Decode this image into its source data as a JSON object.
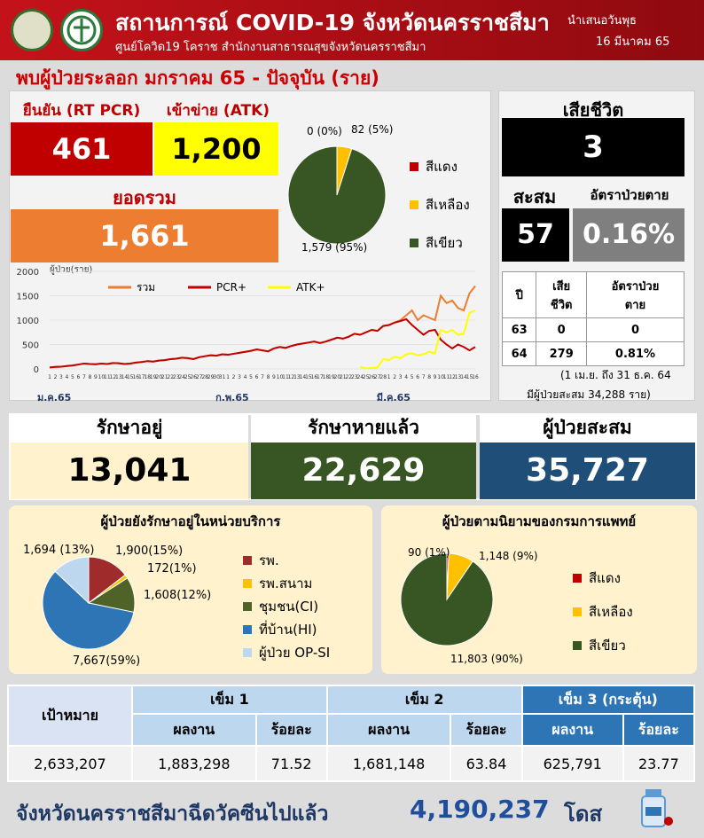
{
  "header": {
    "title": "สถานการณ์ COVID-19 จังหวัดนครราชสีมา",
    "subtitle": "ศูนย์โควิด19 โคราช สำนักงานสาธารณสุขจังหวัดนครราชสีมา",
    "presented_label": "นำเสนอวันพุธ",
    "date": "16 มีนาคม 65"
  },
  "section_title": "พบผู้ป่วยระลอก มกราคม 65 - ปัจจุบัน (ราย)",
  "confirmed": {
    "rtpcr_label": "ยืนยัน (RT PCR)",
    "rtpcr_value": "461",
    "atk_label": "เข้าข่าย (ATK)",
    "atk_value": "1,200",
    "total_label": "ยอดรวม",
    "total_value": "1,661"
  },
  "severity_pie": {
    "labels": {
      "red": "0 (0%)",
      "yellow": "82 (5%)",
      "green": "1,579 (95%)"
    },
    "values": [
      0,
      82,
      1579
    ],
    "colors": [
      "#c00000",
      "#ffc000",
      "#375623"
    ],
    "legend": [
      "สีแดง",
      "สีเหลือง",
      "สีเขียว"
    ]
  },
  "deaths": {
    "title": "เสียชีวิต",
    "value": "3",
    "cum_label": "สะสม",
    "rate_label": "อัตราป่วยตาย",
    "cum_value": "57",
    "rate_value": "0.16%"
  },
  "death_table": {
    "headers": [
      "ปี",
      "เสีย\nชีวิต",
      "อัตราป่วย\nตาย"
    ],
    "rows": [
      [
        "63",
        "0",
        "0"
      ],
      [
        "64",
        "279",
        "0.81%"
      ]
    ],
    "note": "(1 เม.ย. ถึง 31 ธ.ค. 64",
    "note2": "มีผู้ป่วยสะสม  34,288 ราย)"
  },
  "chart_data": {
    "type": "line",
    "ylabel": "ผู้ป่วย(ราย)",
    "ylim": [
      0,
      2000
    ],
    "yticks": [
      "0",
      "500",
      "1000",
      "1500",
      "2000"
    ],
    "x": [
      "1",
      "2",
      "3",
      "4",
      "5",
      "6",
      "7",
      "8",
      "9",
      "10",
      "11",
      "12",
      "13",
      "14",
      "15",
      "16",
      "17",
      "18",
      "19",
      "20",
      "21",
      "22",
      "23",
      "24",
      "25",
      "26",
      "27",
      "28",
      "29",
      "30",
      "31",
      "1",
      "2",
      "3",
      "4",
      "5",
      "6",
      "7",
      "8",
      "9",
      "10",
      "11",
      "12",
      "13",
      "14",
      "15",
      "16",
      "17",
      "18",
      "19",
      "20",
      "21",
      "22",
      "23",
      "24",
      "25",
      "26",
      "27",
      "28",
      "1",
      "2",
      "3",
      "4",
      "5",
      "6",
      "7",
      "8",
      "9",
      "10",
      "11",
      "12",
      "13",
      "14",
      "15",
      "16"
    ],
    "month_labels": [
      "ม.ค.65",
      "ก.พ.65",
      "มี.ค.65"
    ],
    "series": [
      {
        "name": "รวม",
        "color": "#ed7d31",
        "values": [
          30,
          40,
          45,
          60,
          70,
          90,
          110,
          100,
          95,
          110,
          100,
          120,
          115,
          100,
          110,
          130,
          140,
          160,
          150,
          170,
          180,
          200,
          210,
          230,
          220,
          200,
          240,
          260,
          280,
          270,
          300,
          290,
          310,
          330,
          350,
          370,
          400,
          380,
          360,
          420,
          450,
          430,
          470,
          500,
          520,
          540,
          560,
          530,
          560,
          600,
          640,
          620,
          660,
          720,
          700,
          750,
          800,
          780,
          880,
          900,
          950,
          1000,
          1100,
          1200,
          1000,
          1100,
          1050,
          1000,
          1500,
          1350,
          1400,
          1250,
          1200,
          1550,
          1700
        ]
      },
      {
        "name": "PCR+",
        "color": "#c00000",
        "values": [
          30,
          40,
          45,
          60,
          70,
          90,
          110,
          100,
          95,
          110,
          100,
          120,
          115,
          100,
          110,
          130,
          140,
          160,
          150,
          170,
          180,
          200,
          210,
          230,
          220,
          200,
          240,
          260,
          280,
          270,
          300,
          290,
          310,
          330,
          350,
          370,
          400,
          380,
          360,
          420,
          450,
          430,
          470,
          500,
          520,
          540,
          560,
          530,
          560,
          600,
          640,
          620,
          660,
          720,
          700,
          750,
          800,
          780,
          880,
          900,
          950,
          980,
          1020,
          900,
          800,
          700,
          780,
          800,
          600,
          500,
          420,
          500,
          450,
          380,
          450
        ]
      },
      {
        "name": "ATK+",
        "color": "#ffff00",
        "values": [
          null,
          null,
          null,
          null,
          null,
          null,
          null,
          null,
          null,
          null,
          null,
          null,
          null,
          null,
          null,
          null,
          null,
          null,
          null,
          null,
          null,
          null,
          null,
          null,
          null,
          null,
          null,
          null,
          null,
          null,
          null,
          null,
          null,
          null,
          null,
          null,
          null,
          null,
          null,
          null,
          null,
          null,
          null,
          null,
          null,
          null,
          null,
          null,
          null,
          null,
          null,
          null,
          null,
          null,
          40,
          10,
          20,
          30,
          200,
          180,
          250,
          220,
          300,
          320,
          280,
          300,
          350,
          320,
          800,
          750,
          800,
          700,
          720,
          1150,
          1200
        ]
      }
    ]
  },
  "summary": {
    "treating_label": "รักษาอยู่",
    "treating_value": "13,041",
    "recovered_label": "รักษาหายแล้ว",
    "recovered_value": "22,629",
    "cum_label": "ผู้ป่วยสะสม",
    "cum_value": "35,727"
  },
  "facility_pie": {
    "title": "ผู้ป่วยยังรักษาอยู่ในหน่วยบริการ",
    "values": [
      1900,
      172,
      1608,
      7667,
      1694
    ],
    "labels": [
      "1,900(15%)",
      "172(1%)",
      "1,608(12%)",
      "7,667(59%)",
      "1,694 (13%)"
    ],
    "colors": [
      "#a02b2b",
      "#ffc000",
      "#4f6228",
      "#2e75b6",
      "#bdd7ee"
    ],
    "legend": [
      "รพ.",
      "รพ.สนาม",
      "ชุมชน(CI)",
      "ที่บ้าน(HI)",
      "ผู้ป่วย OP-SI"
    ]
  },
  "dms_pie": {
    "title": "ผู้ป่วยตามนิยามของกรมการแพทย์",
    "values": [
      90,
      1148,
      11803
    ],
    "labels": [
      "90 (1%)",
      "1,148 (9%)",
      "11,803 (90%)"
    ],
    "colors": [
      "#c00000",
      "#ffc000",
      "#375623"
    ],
    "legend": [
      "สีแดง",
      "สีเหลือง",
      "สีเขียว"
    ]
  },
  "vaccine": {
    "target_label": "เป้าหมาย",
    "dose1": "เข็ม 1",
    "dose2": "เข็ม 2",
    "dose3": "เข็ม 3 (กระตุ้น)",
    "result": "ผลงาน",
    "percent": "ร้อยละ",
    "target_value": "2,633,207",
    "d1_val": "1,883,298",
    "d1_pct": "71.52",
    "d2_val": "1,681,148",
    "d2_pct": "63.84",
    "d3_val": "625,791",
    "d3_pct": "23.77"
  },
  "footer": {
    "text": "จังหวัดนครราชสีมาฉีดวัคซีนไปแล้ว",
    "value": "4,190,237",
    "unit": "โดส"
  }
}
